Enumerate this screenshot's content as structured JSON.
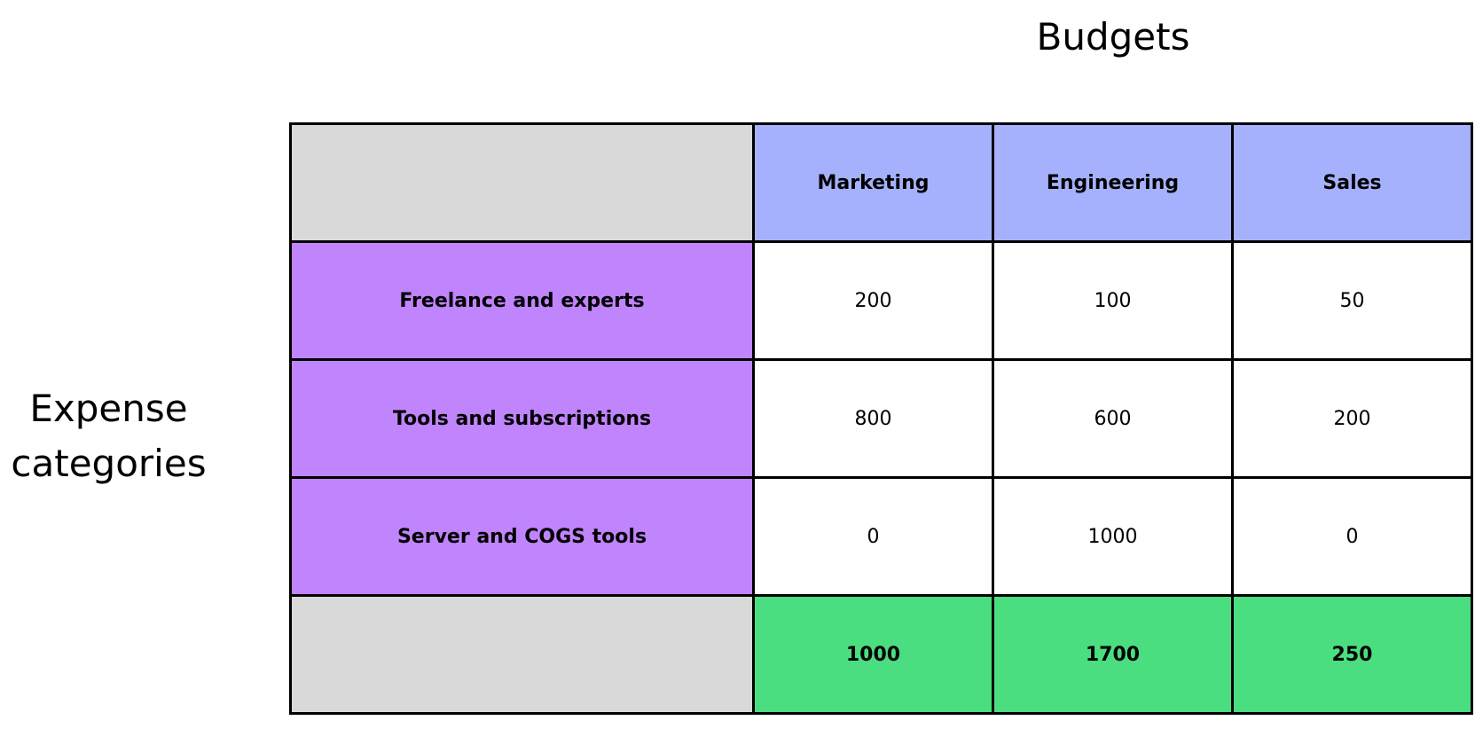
{
  "column_axis_label": "Budgets",
  "row_axis_label": "Expense\ncategories",
  "columns": [
    "Marketing",
    "Engineering",
    "Sales"
  ],
  "rows": [
    {
      "label": "Freelance and experts",
      "values": [
        "200",
        "100",
        "50"
      ]
    },
    {
      "label": "Tools and subscriptions",
      "values": [
        "800",
        "600",
        "200"
      ]
    },
    {
      "label": "Server and COGS tools",
      "values": [
        "0",
        "1000",
        "0"
      ]
    }
  ],
  "totals": [
    "1000",
    "1700",
    "250"
  ],
  "colors": {
    "corner": "#d9d9d9",
    "column_header": "#a5b1fc",
    "row_header": "#c084fc",
    "totals": "#4ade80",
    "border": "#000000"
  }
}
